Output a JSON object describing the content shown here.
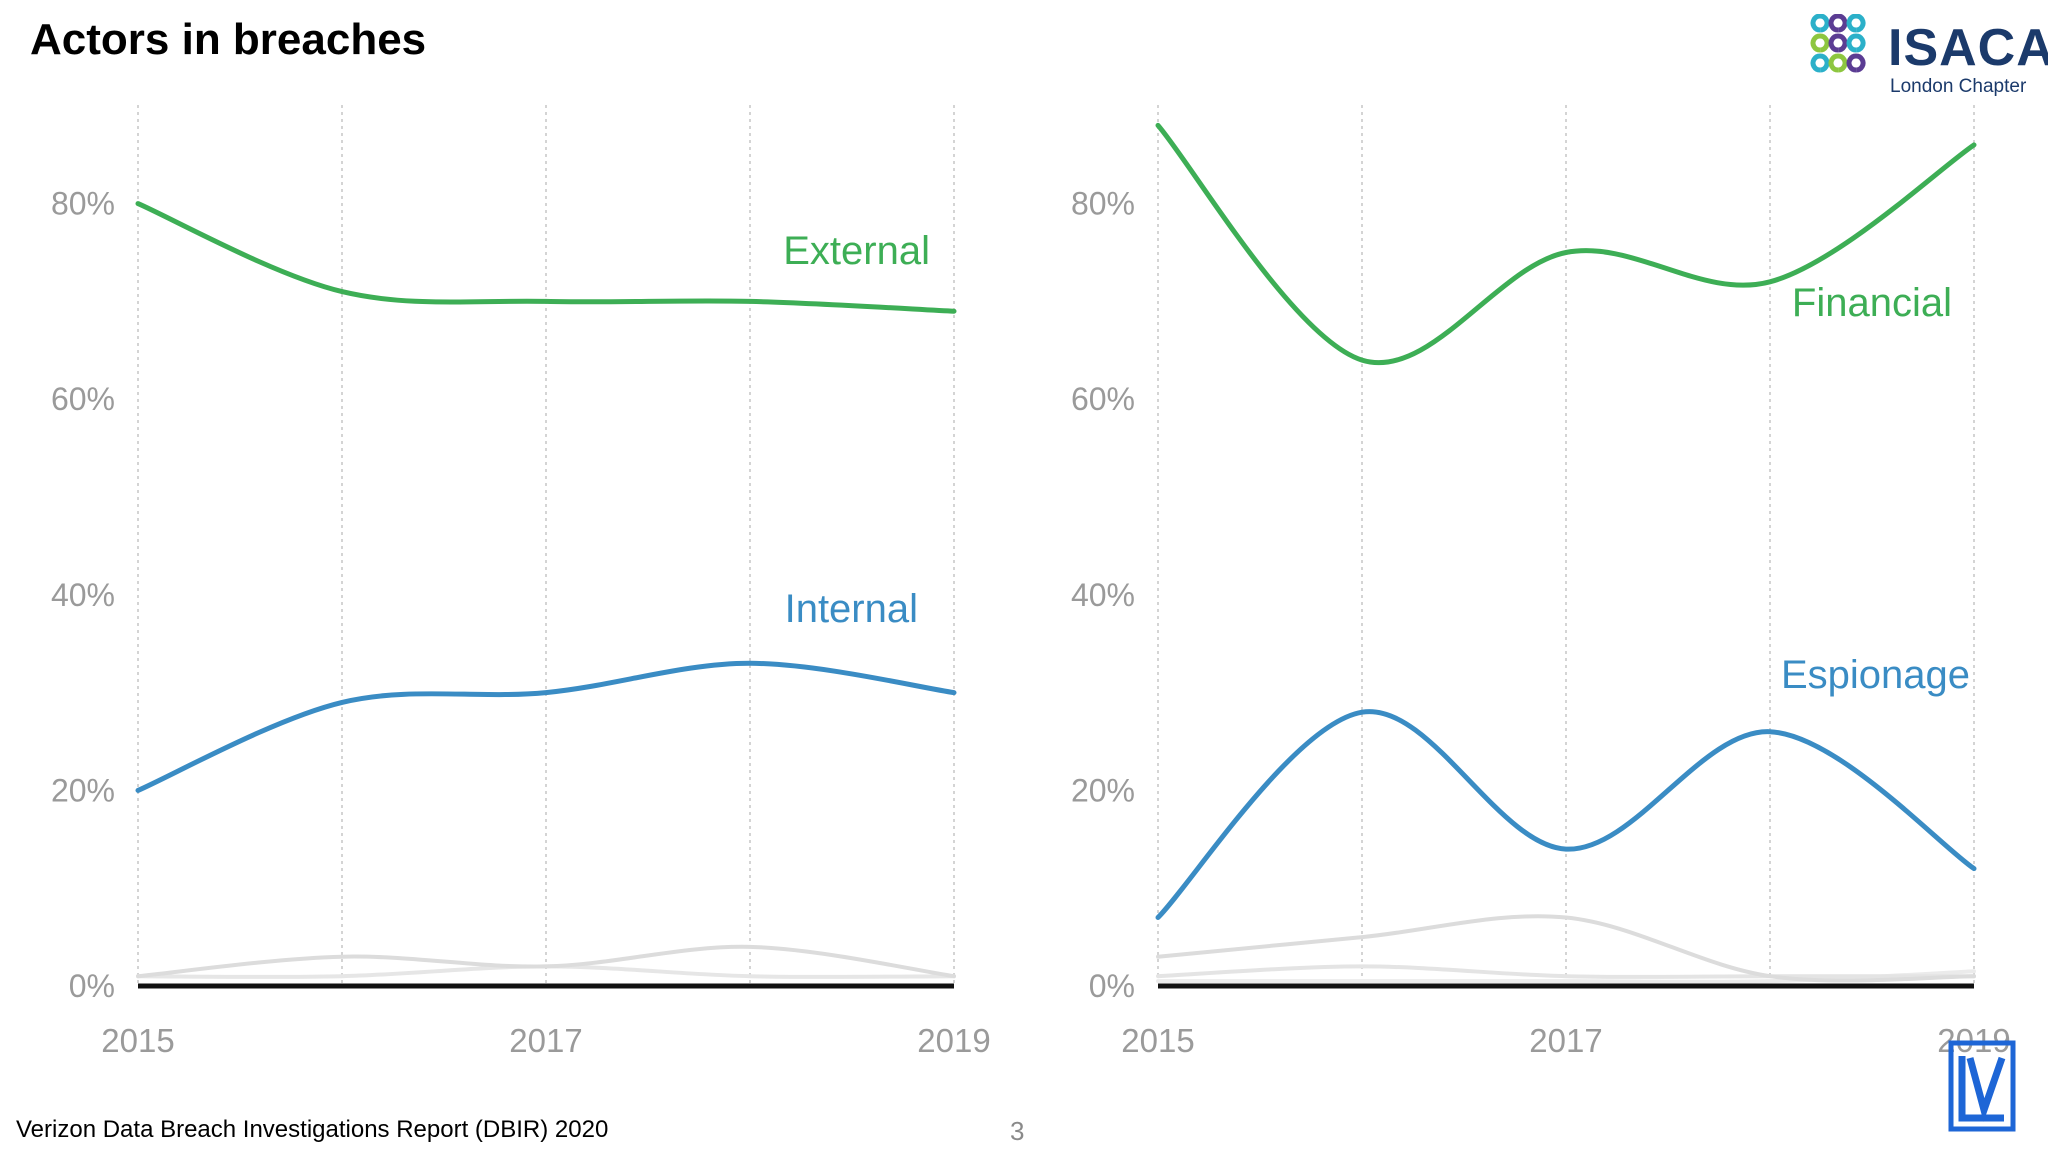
{
  "slide": {
    "title": "Actors in breaches",
    "footer_source": "Verizon Data Breach Investigations Report (DBIR) 2020",
    "page_number": "3"
  },
  "logo": {
    "name": "ISACA",
    "subtitle": "London Chapter",
    "colors": [
      "#2bb0c9",
      "#5b3c93",
      "#8dc63f",
      "#1b3a6b"
    ]
  },
  "corner_logo": {
    "icon": "lv-monogram-icon",
    "color": "#1e66d6"
  },
  "chart_data": [
    {
      "type": "line",
      "title": "",
      "x": [
        2015,
        2016,
        2017,
        2018,
        2019
      ],
      "x_ticks": [
        "2015",
        "2017",
        "2019"
      ],
      "y_ticks": [
        "0%",
        "20%",
        "40%",
        "60%",
        "80%"
      ],
      "ylim": [
        0,
        90
      ],
      "xlabel": "",
      "ylabel": "",
      "series": [
        {
          "name": "External",
          "label": "External",
          "color": "#3dae55",
          "values": [
            80,
            71,
            70,
            70,
            69
          ]
        },
        {
          "name": "Internal",
          "label": "Internal",
          "color": "#3a8cc4",
          "values": [
            20,
            29,
            30,
            33,
            30
          ]
        },
        {
          "name": "Other 1",
          "label": "",
          "color": "#dcdcdc",
          "values": [
            1,
            3,
            2,
            4,
            1
          ]
        },
        {
          "name": "Other 2",
          "label": "",
          "color": "#e6e6e6",
          "values": [
            1,
            1,
            2,
            1,
            1
          ]
        }
      ]
    },
    {
      "type": "line",
      "title": "",
      "x": [
        2015,
        2016,
        2017,
        2018,
        2019
      ],
      "x_ticks": [
        "2015",
        "2017",
        "2019"
      ],
      "y_ticks": [
        "0%",
        "20%",
        "40%",
        "60%",
        "80%"
      ],
      "ylim": [
        0,
        90
      ],
      "xlabel": "",
      "ylabel": "",
      "series": [
        {
          "name": "Financial",
          "label": "Financial",
          "color": "#3dae55",
          "values": [
            88,
            64,
            75,
            72,
            86
          ]
        },
        {
          "name": "Espionage",
          "label": "Espionage",
          "color": "#3a8cc4",
          "values": [
            7,
            28,
            14,
            26,
            12
          ]
        },
        {
          "name": "Other 1",
          "label": "",
          "color": "#dcdcdc",
          "values": [
            3,
            5,
            7,
            1,
            1
          ]
        },
        {
          "name": "Other 2",
          "label": "",
          "color": "#e4e4e4",
          "values": [
            1,
            2,
            1,
            1,
            1
          ]
        },
        {
          "name": "Other 3",
          "label": "",
          "color": "#ebebeb",
          "values": [
            0.5,
            0.5,
            0.5,
            0.5,
            1.5
          ]
        }
      ]
    }
  ]
}
